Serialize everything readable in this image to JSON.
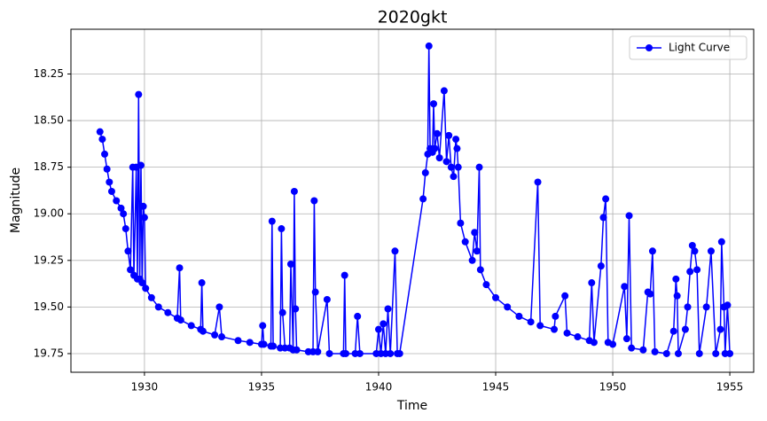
{
  "chart_data": {
    "type": "line",
    "title": "2020gkt",
    "x_label": "Time",
    "y_label": "Magnitude",
    "xlim": [
      1926.86,
      1956.02
    ],
    "ylim": [
      19.85,
      18.01
    ],
    "invert_y": true,
    "xticks": [
      1930,
      1935,
      1940,
      1945,
      1950,
      1955
    ],
    "yticks": [
      18.25,
      {
        "value": 18.5,
        "label": "18.50"
      },
      18.75,
      {
        "value": 19,
        "label": "19.00"
      },
      19.25,
      {
        "value": 19.5,
        "label": "19.50"
      },
      19.75
    ],
    "grid": true,
    "legend": "upper right",
    "series": [
      {
        "name": "Light Curve",
        "color": "#0000ff",
        "x": [
          1928.1,
          1928.2,
          1928.3,
          1928.4,
          1928.5,
          1928.6,
          1928.8,
          1929.0,
          1929.1,
          1929.2,
          1929.3,
          1929.4,
          1929.5,
          1929.55,
          1929.65,
          1929.7,
          1929.75,
          1929.8,
          1929.85,
          1929.9,
          1929.95,
          1930.0,
          1930.05,
          1930.3,
          1930.6,
          1931.0,
          1931.4,
          1931.5,
          1931.55,
          1932.0,
          1932.4,
          1932.45,
          1932.5,
          1933.0,
          1933.2,
          1933.3,
          1934.0,
          1934.5,
          1935.0,
          1935.05,
          1935.1,
          1935.4,
          1935.45,
          1935.5,
          1935.8,
          1935.85,
          1935.9,
          1936.0,
          1936.2,
          1936.25,
          1936.35,
          1936.4,
          1936.45,
          1936.5,
          1937.0,
          1937.2,
          1937.25,
          1937.3,
          1937.4,
          1937.8,
          1937.9,
          1938.5,
          1938.55,
          1938.6,
          1939.0,
          1939.1,
          1939.2,
          1939.9,
          1940.0,
          1940.1,
          1940.2,
          1940.3,
          1940.4,
          1940.5,
          1940.7,
          1940.8,
          1940.9,
          1941.9,
          1942.0,
          1942.1,
          1942.15,
          1942.2,
          1942.3,
          1942.35,
          1942.4,
          1942.5,
          1942.6,
          1942.8,
          1942.9,
          1943.0,
          1943.1,
          1943.2,
          1943.3,
          1943.35,
          1943.4,
          1943.5,
          1943.7,
          1944.0,
          1944.1,
          1944.2,
          1944.3,
          1944.35,
          1944.6,
          1945.0,
          1945.5,
          1946.0,
          1946.5,
          1946.8,
          1946.9,
          1947.5,
          1947.55,
          1947.96,
          1948.05,
          1948.5,
          1949.0,
          1949.1,
          1949.2,
          1949.5,
          1949.6,
          1949.7,
          1949.8,
          1950.0,
          1950.5,
          1950.6,
          1950.7,
          1950.8,
          1951.3,
          1951.5,
          1951.6,
          1951.7,
          1951.8,
          1952.3,
          1952.6,
          1952.7,
          1952.75,
          1952.8,
          1953.1,
          1953.2,
          1953.3,
          1953.4,
          1953.5,
          1953.6,
          1953.7,
          1954.0,
          1954.2,
          1954.4,
          1954.6,
          1954.65,
          1954.75,
          1954.8,
          1954.9,
          1955.0
        ],
        "values": [
          18.56,
          18.6,
          18.68,
          18.76,
          18.83,
          18.88,
          18.93,
          18.97,
          19.0,
          19.08,
          19.2,
          19.3,
          18.75,
          19.33,
          18.75,
          19.35,
          18.36,
          19.35,
          18.74,
          19.37,
          18.96,
          19.02,
          19.4,
          19.45,
          19.5,
          19.53,
          19.56,
          19.29,
          19.57,
          19.6,
          19.62,
          19.37,
          19.63,
          19.65,
          19.5,
          19.66,
          19.68,
          19.69,
          19.7,
          19.6,
          19.7,
          19.71,
          19.04,
          19.71,
          19.72,
          19.08,
          19.53,
          19.72,
          19.72,
          19.27,
          19.73,
          18.88,
          19.51,
          19.73,
          19.74,
          19.74,
          18.93,
          19.42,
          19.74,
          19.46,
          19.75,
          19.75,
          19.33,
          19.75,
          19.75,
          19.55,
          19.75,
          19.75,
          19.62,
          19.75,
          19.59,
          19.75,
          19.51,
          19.75,
          19.2,
          19.75,
          19.75,
          18.92,
          18.78,
          18.68,
          18.1,
          18.65,
          18.67,
          18.41,
          18.65,
          18.57,
          18.7,
          18.34,
          18.72,
          18.58,
          18.75,
          18.8,
          18.6,
          18.65,
          18.75,
          19.05,
          19.15,
          19.25,
          19.1,
          19.2,
          18.75,
          19.3,
          19.38,
          19.45,
          19.5,
          19.55,
          19.58,
          18.83,
          19.6,
          19.62,
          19.55,
          19.44,
          19.64,
          19.66,
          19.68,
          19.37,
          19.69,
          19.28,
          19.02,
          18.92,
          19.69,
          19.7,
          19.39,
          19.67,
          19.01,
          19.72,
          19.73,
          19.42,
          19.43,
          19.2,
          19.74,
          19.75,
          19.63,
          19.35,
          19.44,
          19.75,
          19.62,
          19.5,
          19.31,
          19.17,
          19.2,
          19.3,
          19.75,
          19.5,
          19.2,
          19.75,
          19.62,
          19.15,
          19.5,
          19.75,
          19.49,
          19.75
        ]
      }
    ]
  }
}
